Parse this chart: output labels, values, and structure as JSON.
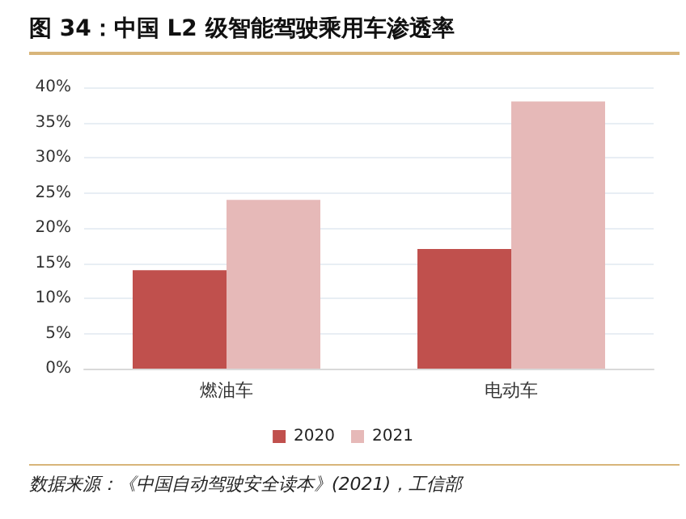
{
  "chart_data": {
    "type": "bar",
    "title": "图 34：中国 L2 级智能驾驶乘用车渗透率",
    "categories": [
      "燃油车",
      "电动车"
    ],
    "series": [
      {
        "name": "2020",
        "color": "#c0504d",
        "values": [
          14,
          17
        ]
      },
      {
        "name": "2021",
        "color": "#e6b9b8",
        "values": [
          24,
          38
        ]
      }
    ],
    "ylim": [
      0,
      40
    ],
    "yticks": [
      {
        "value": 0,
        "label": "0%"
      },
      {
        "value": 5,
        "label": "5%"
      },
      {
        "value": 10,
        "label": "10%"
      },
      {
        "value": 15,
        "label": "15%"
      },
      {
        "value": 20,
        "label": "20%"
      },
      {
        "value": 25,
        "label": "25%"
      },
      {
        "value": 30,
        "label": "30%"
      },
      {
        "value": 35,
        "label": "35%"
      },
      {
        "value": 40,
        "label": "40%"
      }
    ],
    "grid": "y",
    "legend": "bottom",
    "annotations": [
      "数据来源：《中国自动驾驶安全读本》(2021)，工信部"
    ]
  }
}
